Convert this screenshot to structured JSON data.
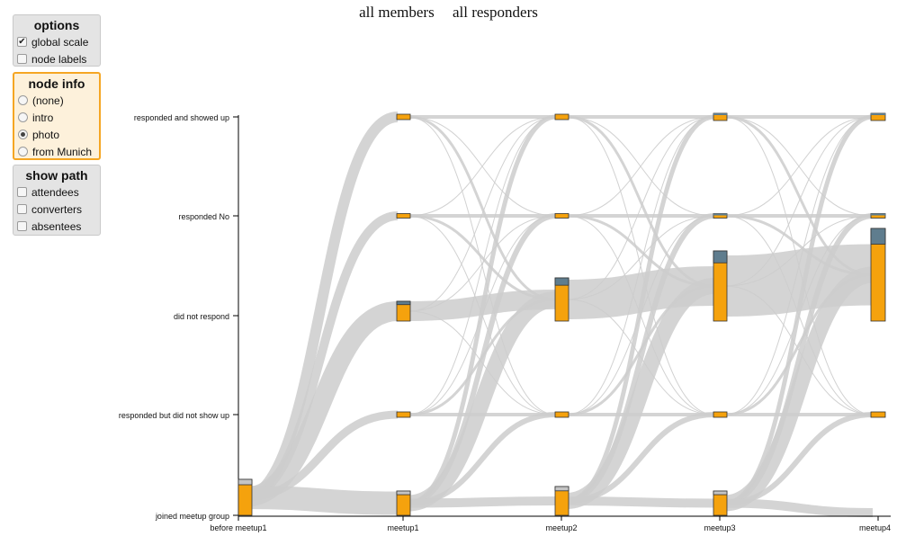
{
  "nav": {
    "all_members": "all members",
    "all_responders": "all responders"
  },
  "options_panel": {
    "title": "options",
    "global_scale": "global scale",
    "global_scale_checked": true,
    "node_labels": "node labels",
    "node_labels_checked": false
  },
  "node_info_panel": {
    "title": "node info",
    "options": [
      "(none)",
      "intro",
      "photo",
      "from Munich"
    ],
    "selected": "photo"
  },
  "show_path_panel": {
    "title": "show path",
    "options": [
      "attendees",
      "converters",
      "absentees"
    ]
  },
  "colors": {
    "flow": "#cccccc",
    "node_main": "#f5a20d",
    "node_highlight": "#5f7d8e",
    "node_light": "#c4c4c4",
    "axis": "#000000"
  },
  "chart_data": {
    "type": "sankey",
    "columns": [
      "before meetup1",
      "meetup1",
      "meetup2",
      "meetup3",
      "meetup4"
    ],
    "states": [
      "responded and showed up",
      "responded No",
      "did not respond",
      "responded but did not show up",
      "joined meetup group"
    ],
    "node_sizes": [
      [
        0,
        0,
        0,
        0,
        40
      ],
      [
        6,
        5,
        22,
        6,
        27
      ],
      [
        6,
        5,
        48,
        6,
        32
      ],
      [
        8,
        5,
        78,
        6,
        27
      ],
      [
        8,
        5,
        103,
        6,
        0
      ]
    ]
  }
}
